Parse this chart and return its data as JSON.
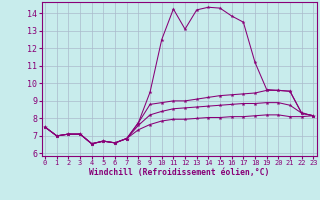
{
  "background_color": "#c8ecec",
  "grid_color": "#aabbcc",
  "line_color": "#880077",
  "xlabel": "Windchill (Refroidissement éolien,°C)",
  "line1_y": [
    7.5,
    7.0,
    7.1,
    7.1,
    6.55,
    6.7,
    6.6,
    6.85,
    7.75,
    9.5,
    12.5,
    14.25,
    13.1,
    14.2,
    14.35,
    14.3,
    13.85,
    13.5,
    11.2,
    9.65,
    9.6,
    9.55,
    8.3,
    8.15
  ],
  "line2_y": [
    7.5,
    7.0,
    7.1,
    7.1,
    6.55,
    6.7,
    6.6,
    6.85,
    7.75,
    8.8,
    8.9,
    9.0,
    9.0,
    9.1,
    9.2,
    9.3,
    9.35,
    9.4,
    9.45,
    9.6,
    9.6,
    9.55,
    8.3,
    8.15
  ],
  "line3_y": [
    7.5,
    7.0,
    7.1,
    7.1,
    6.55,
    6.7,
    6.6,
    6.85,
    7.6,
    8.2,
    8.4,
    8.55,
    8.6,
    8.65,
    8.7,
    8.75,
    8.8,
    8.85,
    8.85,
    8.9,
    8.9,
    8.75,
    8.3,
    8.15
  ],
  "line4_y": [
    7.5,
    7.0,
    7.1,
    7.1,
    6.55,
    6.7,
    6.6,
    6.85,
    7.35,
    7.65,
    7.85,
    7.95,
    7.95,
    8.0,
    8.05,
    8.05,
    8.1,
    8.1,
    8.15,
    8.2,
    8.2,
    8.1,
    8.1,
    8.15
  ],
  "xticks": [
    0,
    1,
    2,
    3,
    4,
    5,
    6,
    7,
    8,
    9,
    10,
    11,
    12,
    13,
    14,
    15,
    16,
    17,
    18,
    19,
    20,
    21,
    22,
    23
  ],
  "yticks": [
    6,
    7,
    8,
    9,
    10,
    11,
    12,
    13,
    14
  ],
  "xlim": [
    -0.3,
    23.3
  ],
  "ylim": [
    5.85,
    14.65
  ]
}
